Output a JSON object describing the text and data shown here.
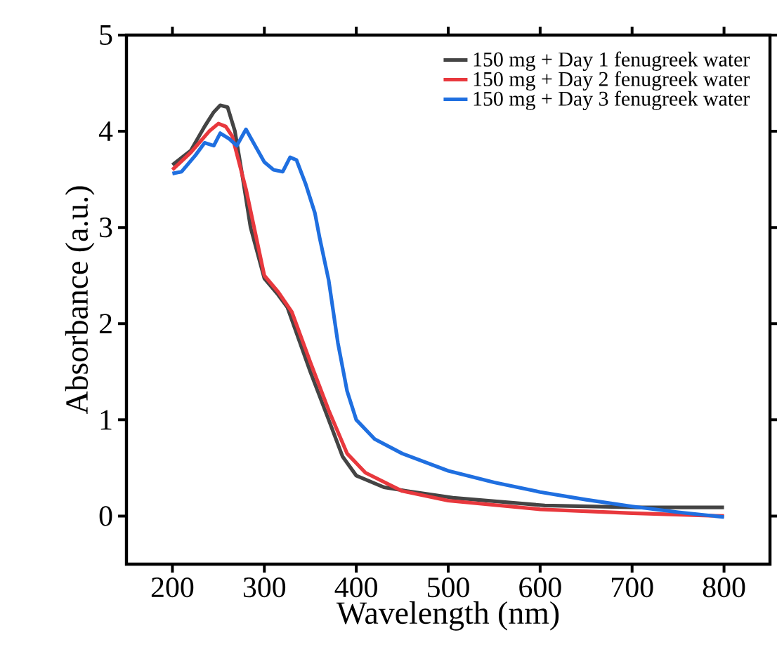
{
  "chart_data": {
    "type": "line",
    "xlabel": "Wavelength (nm)",
    "ylabel": "Absorbance (a.u.)",
    "xlim": [
      150,
      850
    ],
    "ylim": [
      -0.5,
      5
    ],
    "xticks": [
      200,
      300,
      400,
      500,
      600,
      700,
      800
    ],
    "yticks": [
      0,
      1,
      2,
      3,
      4,
      5
    ],
    "legend": "top right",
    "grid": false,
    "marker": "none",
    "line_style": "solid",
    "series": [
      {
        "name": "150 mg + Day 1 fenugreek water",
        "color": "#444444",
        "x": [
          200,
          220,
          235,
          245,
          252,
          260,
          268,
          275,
          285,
          300,
          315,
          325,
          350,
          370,
          385,
          400,
          430,
          455,
          505,
          605,
          705,
          800
        ],
        "values": [
          3.65,
          3.8,
          4.05,
          4.2,
          4.27,
          4.25,
          4.0,
          3.6,
          3.0,
          2.47,
          2.3,
          2.17,
          1.5,
          1.0,
          0.62,
          0.42,
          0.3,
          0.26,
          0.19,
          0.11,
          0.09,
          0.09
        ]
      },
      {
        "name": "150 mg + Day 2 fenugreek water",
        "color": "#e8383d",
        "x": [
          200,
          220,
          240,
          250,
          258,
          265,
          280,
          300,
          315,
          330,
          350,
          370,
          390,
          410,
          450,
          500,
          600,
          700,
          800
        ],
        "values": [
          3.6,
          3.78,
          4.0,
          4.08,
          4.05,
          3.95,
          3.4,
          2.5,
          2.33,
          2.12,
          1.6,
          1.1,
          0.65,
          0.45,
          0.26,
          0.16,
          0.07,
          0.03,
          0.0
        ]
      },
      {
        "name": "150 mg + Day 3 fenugreek water",
        "color": "#1f6fe0",
        "x": [
          200,
          210,
          225,
          235,
          245,
          252,
          262,
          270,
          280,
          290,
          300,
          310,
          320,
          328,
          335,
          345,
          355,
          360,
          370,
          380,
          390,
          400,
          420,
          450,
          500,
          550,
          600,
          650,
          700,
          750,
          800
        ],
        "values": [
          3.56,
          3.58,
          3.75,
          3.88,
          3.85,
          3.98,
          3.92,
          3.85,
          4.02,
          3.85,
          3.68,
          3.6,
          3.58,
          3.73,
          3.7,
          3.45,
          3.15,
          2.9,
          2.45,
          1.8,
          1.3,
          1.0,
          0.8,
          0.65,
          0.47,
          0.35,
          0.25,
          0.17,
          0.1,
          0.04,
          -0.01
        ]
      }
    ]
  }
}
